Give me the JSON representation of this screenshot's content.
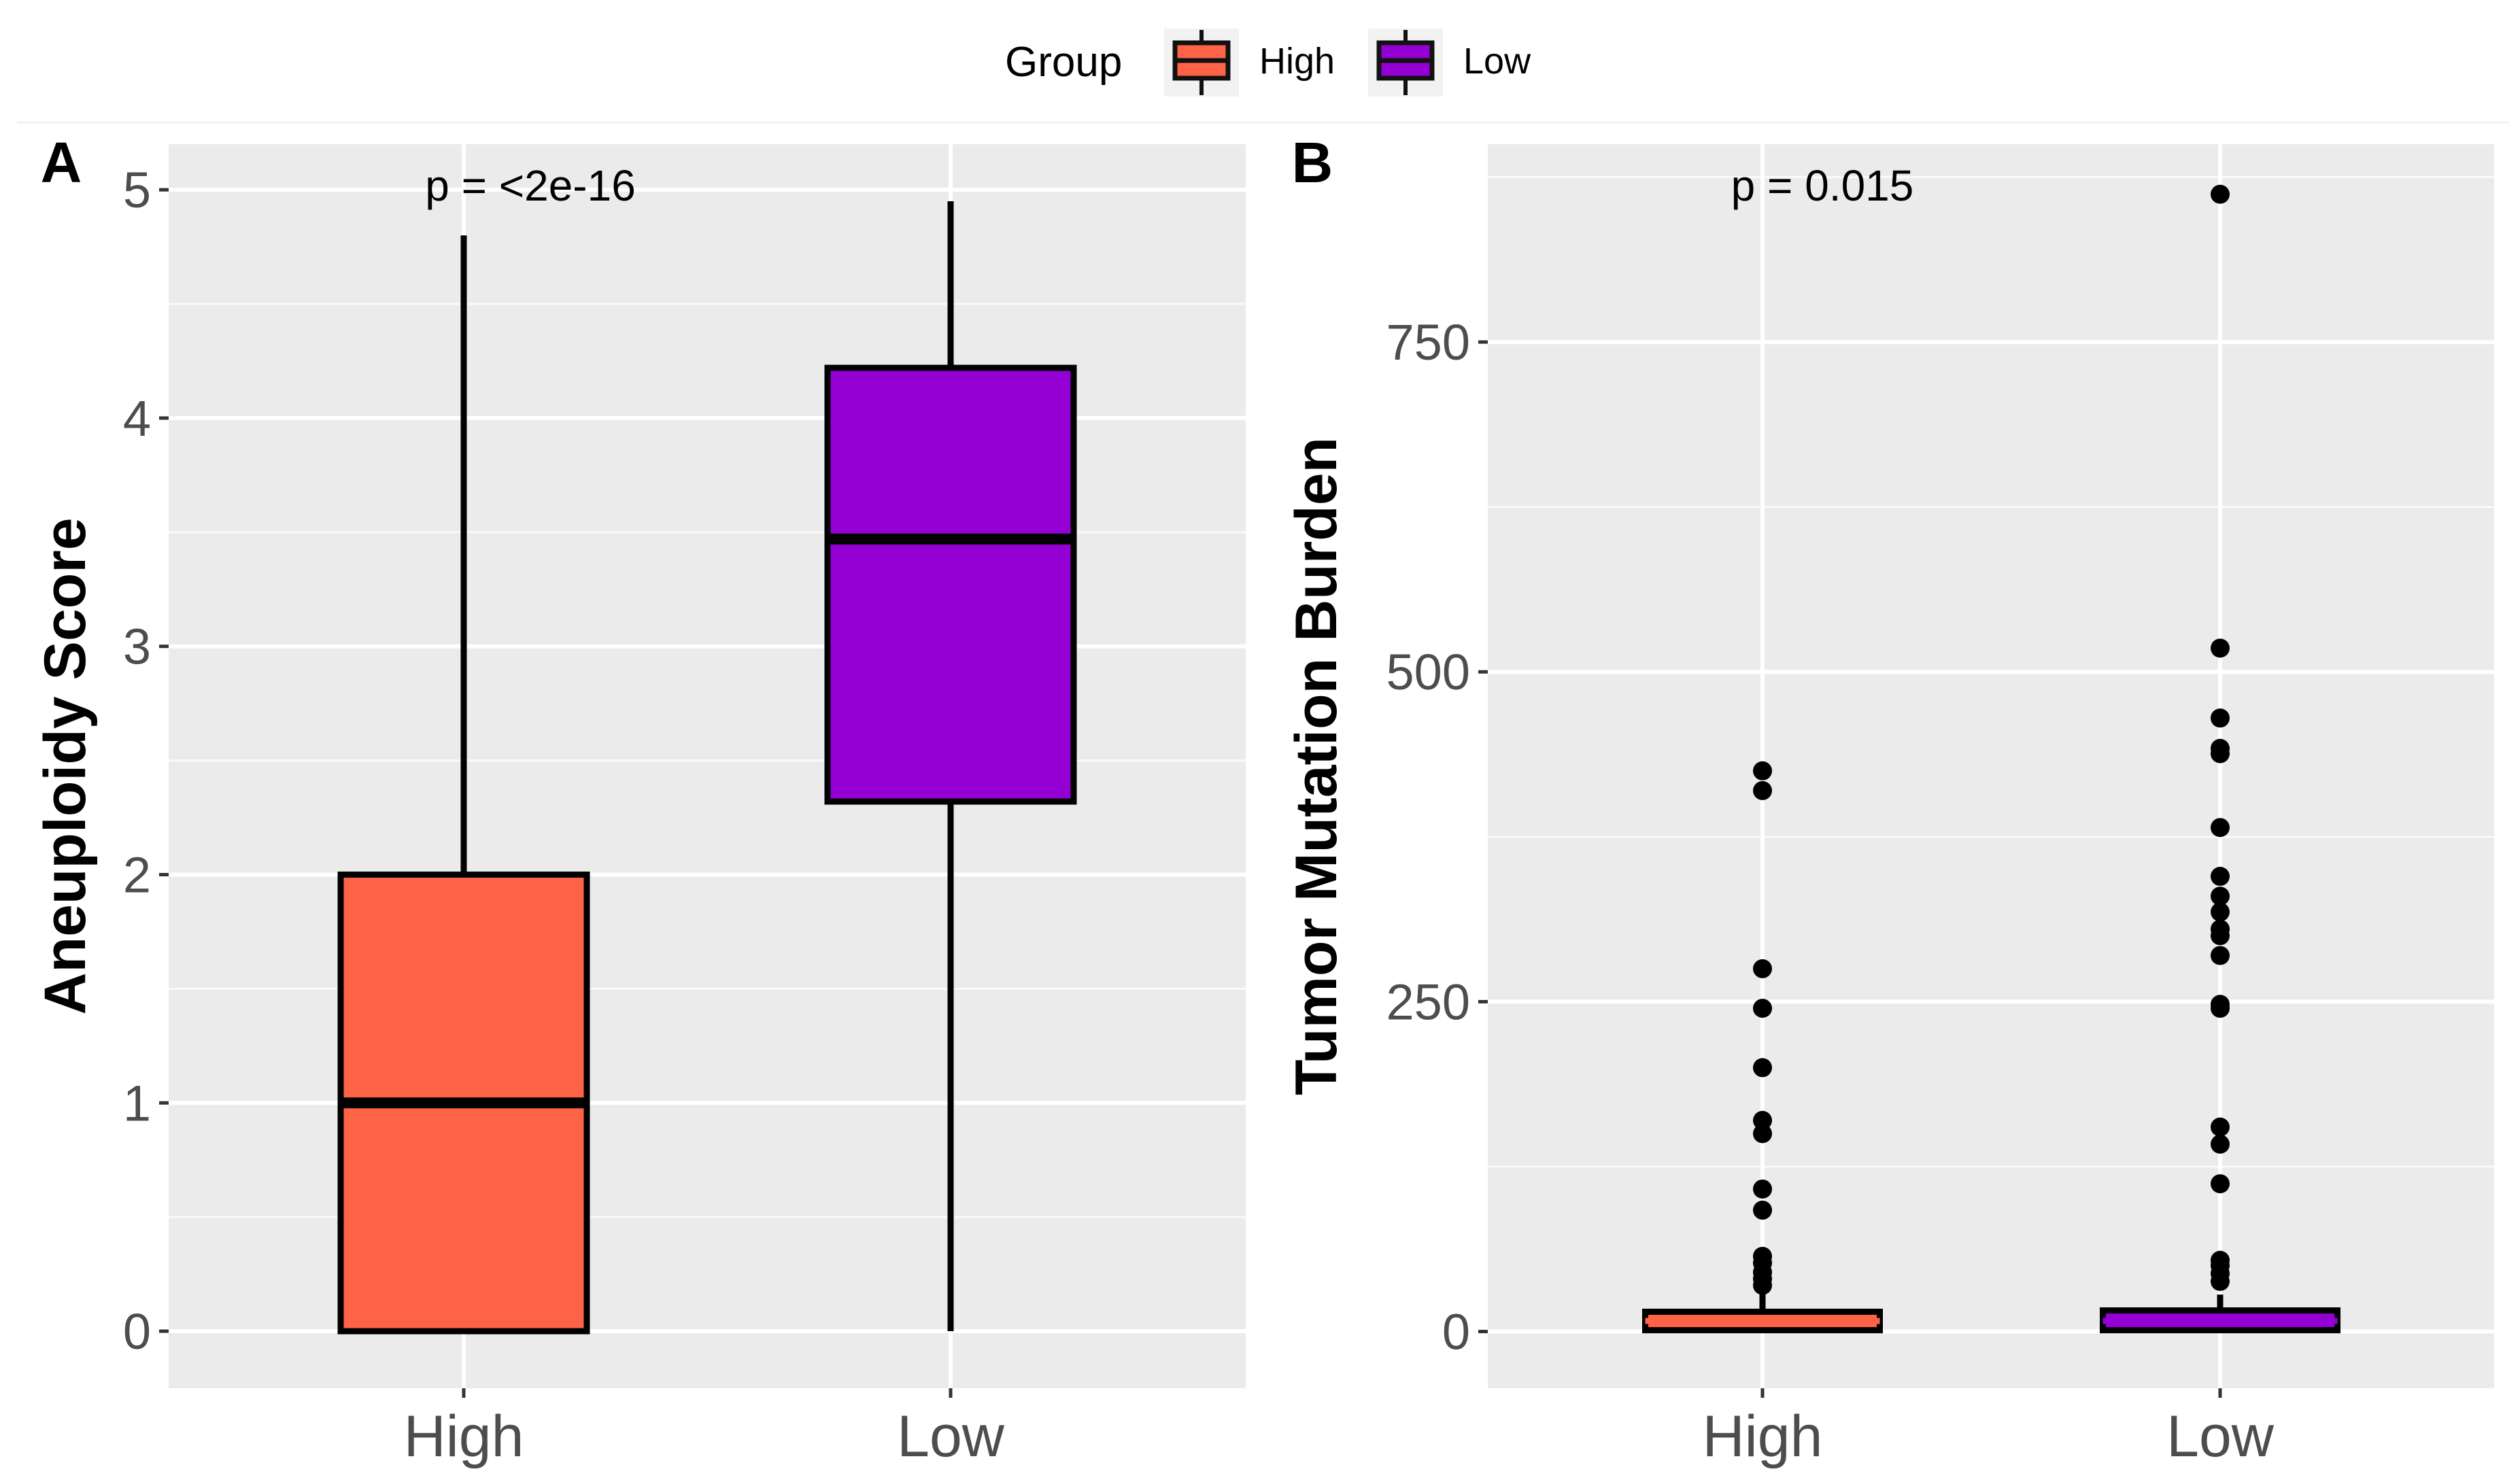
{
  "legend": {
    "title": "Group",
    "entries": [
      {
        "label": "High",
        "color": "#FF6347"
      },
      {
        "label": "Low",
        "color": "#9400D3"
      }
    ]
  },
  "chart_data": [
    {
      "type": "boxplot",
      "panel_label": "A",
      "ylabel": "Aneuploidy Score",
      "xlabel": "",
      "categories": [
        "High",
        "Low"
      ],
      "ylim": [
        -0.25,
        5.2
      ],
      "yticks": [
        0,
        1,
        2,
        3,
        4,
        5
      ],
      "ytick_labels": [
        "0",
        "1",
        "2",
        "3",
        "4",
        "5"
      ],
      "annotation": "p = <2e-16",
      "boxes": [
        {
          "group": "High",
          "min": 0,
          "q1": 0,
          "median": 1,
          "q3": 2,
          "max": 4.8,
          "outliers": []
        },
        {
          "group": "Low",
          "min": 0,
          "q1": 2.32,
          "median": 3.47,
          "q3": 4.22,
          "max": 4.95,
          "outliers": []
        }
      ]
    },
    {
      "type": "boxplot",
      "panel_label": "B",
      "ylabel": "Tumor Mutation Burden",
      "xlabel": "",
      "categories": [
        "High",
        "Low"
      ],
      "ylim": [
        -43,
        900
      ],
      "yticks": [
        0,
        250,
        500,
        750
      ],
      "ytick_labels": [
        "0",
        "250",
        "500",
        "750"
      ],
      "annotation": "p = 0.015",
      "boxes": [
        {
          "group": "High",
          "min": 0,
          "q1": 1,
          "median": 8,
          "q3": 15,
          "max": 30,
          "outliers": [
            35,
            40,
            45,
            52,
            57,
            92,
            108,
            150,
            160,
            200,
            245,
            275,
            410,
            425
          ]
        },
        {
          "group": "Low",
          "min": 0,
          "q1": 1,
          "median": 8,
          "q3": 16,
          "max": 28,
          "outliers": [
            38,
            44,
            50,
            54,
            112,
            142,
            155,
            245,
            248,
            285,
            300,
            305,
            318,
            330,
            345,
            382,
            438,
            442,
            465,
            518,
            862
          ]
        }
      ]
    }
  ]
}
